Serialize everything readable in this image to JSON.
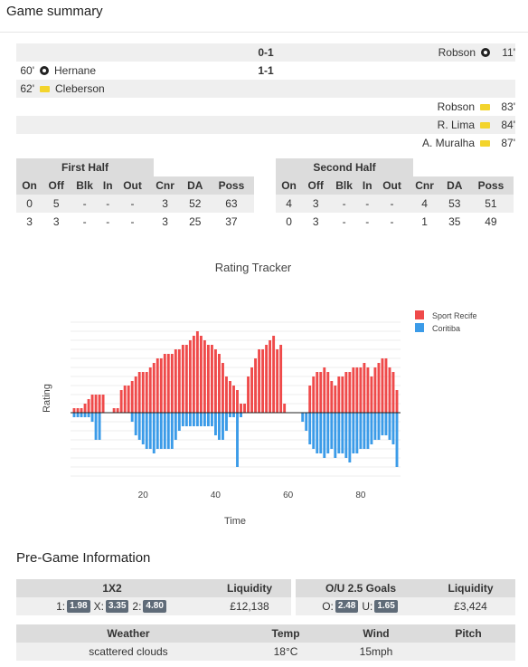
{
  "header": {
    "title": "Game summary"
  },
  "events": [
    {
      "side": "right",
      "minute": "11'",
      "player": "Robson",
      "icon": "ball-icon",
      "score": "0-1"
    },
    {
      "side": "left",
      "minute": "60'",
      "player": "Hernane",
      "icon": "ball-icon",
      "score": "1-1"
    },
    {
      "side": "left",
      "minute": "62'",
      "player": "Cleberson",
      "icon": "yellow-card-icon",
      "score": ""
    },
    {
      "side": "right",
      "minute": "83'",
      "player": "Robson",
      "icon": "yellow-card-icon",
      "score": ""
    },
    {
      "side": "right",
      "minute": "84'",
      "player": "R. Lima",
      "icon": "yellow-card-icon",
      "score": ""
    },
    {
      "side": "right",
      "minute": "87'",
      "player": "A. Muralha",
      "icon": "yellow-card-icon",
      "score": ""
    }
  ],
  "first_half": {
    "title": "First Half",
    "columns": [
      "On",
      "Off",
      "Blk",
      "In",
      "Out",
      "Cnr",
      "DA",
      "Poss"
    ],
    "rows": [
      [
        "0",
        "5",
        "-",
        "-",
        "-",
        "3",
        "52",
        "63"
      ],
      [
        "3",
        "3",
        "-",
        "-",
        "-",
        "3",
        "25",
        "37"
      ]
    ]
  },
  "second_half": {
    "title": "Second Half",
    "columns": [
      "On",
      "Off",
      "Blk",
      "In",
      "Out",
      "Cnr",
      "DA",
      "Poss"
    ],
    "rows": [
      [
        "4",
        "3",
        "-",
        "-",
        "-",
        "4",
        "53",
        "51"
      ],
      [
        "0",
        "3",
        "-",
        "-",
        "-",
        "1",
        "35",
        "49"
      ]
    ]
  },
  "chart_data": {
    "type": "bar",
    "title": "Rating Tracker",
    "xlabel": "Time",
    "ylabel": "Rating",
    "xlim": [
      0,
      91
    ],
    "ylim": [
      -80,
      100
    ],
    "xticks": [
      20,
      40,
      60,
      80
    ],
    "legend_position": "top-right",
    "grid": true,
    "series": [
      {
        "name": "Sport Recife",
        "color": "#ef4a4a",
        "x": [
          1,
          2,
          3,
          4,
          5,
          6,
          7,
          8,
          9,
          10,
          11,
          12,
          13,
          14,
          15,
          16,
          17,
          18,
          19,
          20,
          21,
          22,
          23,
          24,
          25,
          26,
          27,
          28,
          29,
          30,
          31,
          32,
          33,
          34,
          35,
          36,
          37,
          38,
          39,
          40,
          41,
          42,
          43,
          44,
          45,
          46,
          47,
          48,
          49,
          50,
          51,
          52,
          53,
          54,
          55,
          56,
          57,
          58,
          59,
          60,
          61,
          62,
          63,
          64,
          65,
          66,
          67,
          68,
          69,
          70,
          71,
          72,
          73,
          74,
          75,
          76,
          77,
          78,
          79,
          80,
          81,
          82,
          83,
          84,
          85,
          86,
          87,
          88,
          89,
          90
        ],
        "values": [
          5,
          5,
          5,
          10,
          15,
          20,
          20,
          20,
          20,
          0,
          0,
          5,
          5,
          25,
          30,
          30,
          35,
          40,
          45,
          45,
          45,
          50,
          55,
          60,
          60,
          65,
          65,
          65,
          70,
          70,
          75,
          75,
          80,
          85,
          90,
          85,
          80,
          75,
          75,
          70,
          65,
          55,
          40,
          35,
          30,
          25,
          10,
          10,
          40,
          50,
          60,
          70,
          70,
          75,
          80,
          85,
          70,
          75,
          10,
          0,
          0,
          0,
          0,
          0,
          0,
          30,
          40,
          45,
          45,
          50,
          45,
          35,
          30,
          40,
          40,
          45,
          45,
          50,
          50,
          50,
          55,
          50,
          40,
          50,
          55,
          60,
          60,
          50,
          45,
          25
        ]
      },
      {
        "name": "Coritiba",
        "color": "#3b9be8",
        "x": [
          1,
          2,
          3,
          4,
          5,
          6,
          7,
          8,
          9,
          10,
          11,
          12,
          13,
          14,
          15,
          16,
          17,
          18,
          19,
          20,
          21,
          22,
          23,
          24,
          25,
          26,
          27,
          28,
          29,
          30,
          31,
          32,
          33,
          34,
          35,
          36,
          37,
          38,
          39,
          40,
          41,
          42,
          43,
          44,
          45,
          46,
          47,
          48,
          49,
          50,
          51,
          52,
          53,
          54,
          55,
          56,
          57,
          58,
          59,
          60,
          61,
          62,
          63,
          64,
          65,
          66,
          67,
          68,
          69,
          70,
          71,
          72,
          73,
          74,
          75,
          76,
          77,
          78,
          79,
          80,
          81,
          82,
          83,
          84,
          85,
          86,
          87,
          88,
          89,
          90
        ],
        "values": [
          -5,
          -5,
          -5,
          -5,
          -5,
          -10,
          -30,
          -30,
          0,
          0,
          0,
          0,
          0,
          0,
          0,
          0,
          -10,
          -25,
          -30,
          -35,
          -40,
          -40,
          -45,
          -40,
          -40,
          -40,
          -40,
          -40,
          -30,
          -20,
          -15,
          -15,
          -15,
          -15,
          -15,
          -15,
          -15,
          -15,
          -15,
          -25,
          -30,
          -30,
          -20,
          -5,
          -5,
          -60,
          -5,
          0,
          0,
          0,
          0,
          0,
          0,
          0,
          0,
          0,
          0,
          0,
          0,
          0,
          0,
          0,
          0,
          -10,
          -20,
          -35,
          -40,
          -45,
          -45,
          -50,
          -45,
          -40,
          -50,
          -45,
          -45,
          -50,
          -55,
          -45,
          -45,
          -40,
          -40,
          -40,
          -35,
          -30,
          -30,
          -25,
          -25,
          -30,
          -35,
          -60
        ]
      }
    ]
  },
  "pregame": {
    "title": "Pre-Game Information",
    "odds_box": {
      "head_market": "1X2",
      "head_liquidity": "Liquidity",
      "labels": [
        "1:",
        "X:",
        "2:"
      ],
      "values": [
        "1.98",
        "3.35",
        "4.80"
      ],
      "liquidity": "£12,138"
    },
    "ou_box": {
      "head_market": "O/U 2.5 Goals",
      "head_liquidity": "Liquidity",
      "labels": [
        "O:",
        "U:"
      ],
      "values": [
        "2.48",
        "1.65"
      ],
      "liquidity": "£3,424"
    },
    "weather_box": {
      "headers": [
        "Weather",
        "Temp",
        "Wind",
        "Pitch"
      ],
      "values": [
        "scattered clouds",
        "18°C",
        "15mph",
        ""
      ]
    }
  }
}
